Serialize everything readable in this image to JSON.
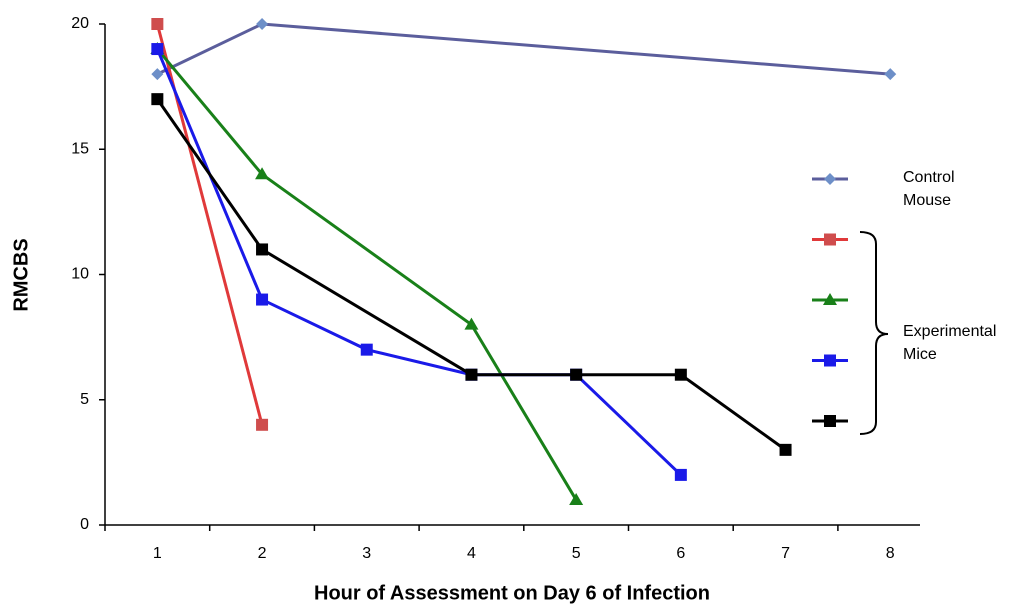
{
  "chart_data": {
    "type": "line",
    "x_label": "Hour of Assessment on Day 6 of Infection",
    "y_label": "RMCBS",
    "xlim": [
      0.5,
      8.5
    ],
    "xticks": [
      1,
      2,
      3,
      4,
      5,
      6,
      7,
      8
    ],
    "ylim": [
      0,
      20
    ],
    "yticks": [
      0,
      5,
      10,
      15,
      20
    ],
    "series": [
      {
        "name": "Control Mouse",
        "color": "#5b5e9c",
        "marker_color": "#6d8fc8",
        "marker": "diamond",
        "x": [
          1,
          2,
          8
        ],
        "values": [
          18,
          20,
          18
        ]
      },
      {
        "color": "#e0393a",
        "marker_color": "#cf4d4d",
        "marker": "square",
        "x": [
          1,
          2
        ],
        "values": [
          20,
          4
        ]
      },
      {
        "color": "#198019",
        "marker_color": "#198019",
        "marker": "triangle",
        "x": [
          1,
          2,
          4,
          5
        ],
        "values": [
          19,
          14,
          8,
          1
        ]
      },
      {
        "color": "#1a1ae8",
        "marker_color": "#1a1ae8",
        "marker": "square",
        "x": [
          1,
          2,
          3,
          4,
          5,
          6
        ],
        "values": [
          19,
          9,
          7,
          6,
          6,
          2
        ]
      },
      {
        "color": "#000000",
        "marker_color": "#000000",
        "marker": "square",
        "x": [
          1,
          2,
          4,
          5,
          6,
          7
        ],
        "values": [
          17,
          11,
          6,
          6,
          6,
          3
        ]
      }
    ],
    "group_label": "Experimental Mice"
  }
}
